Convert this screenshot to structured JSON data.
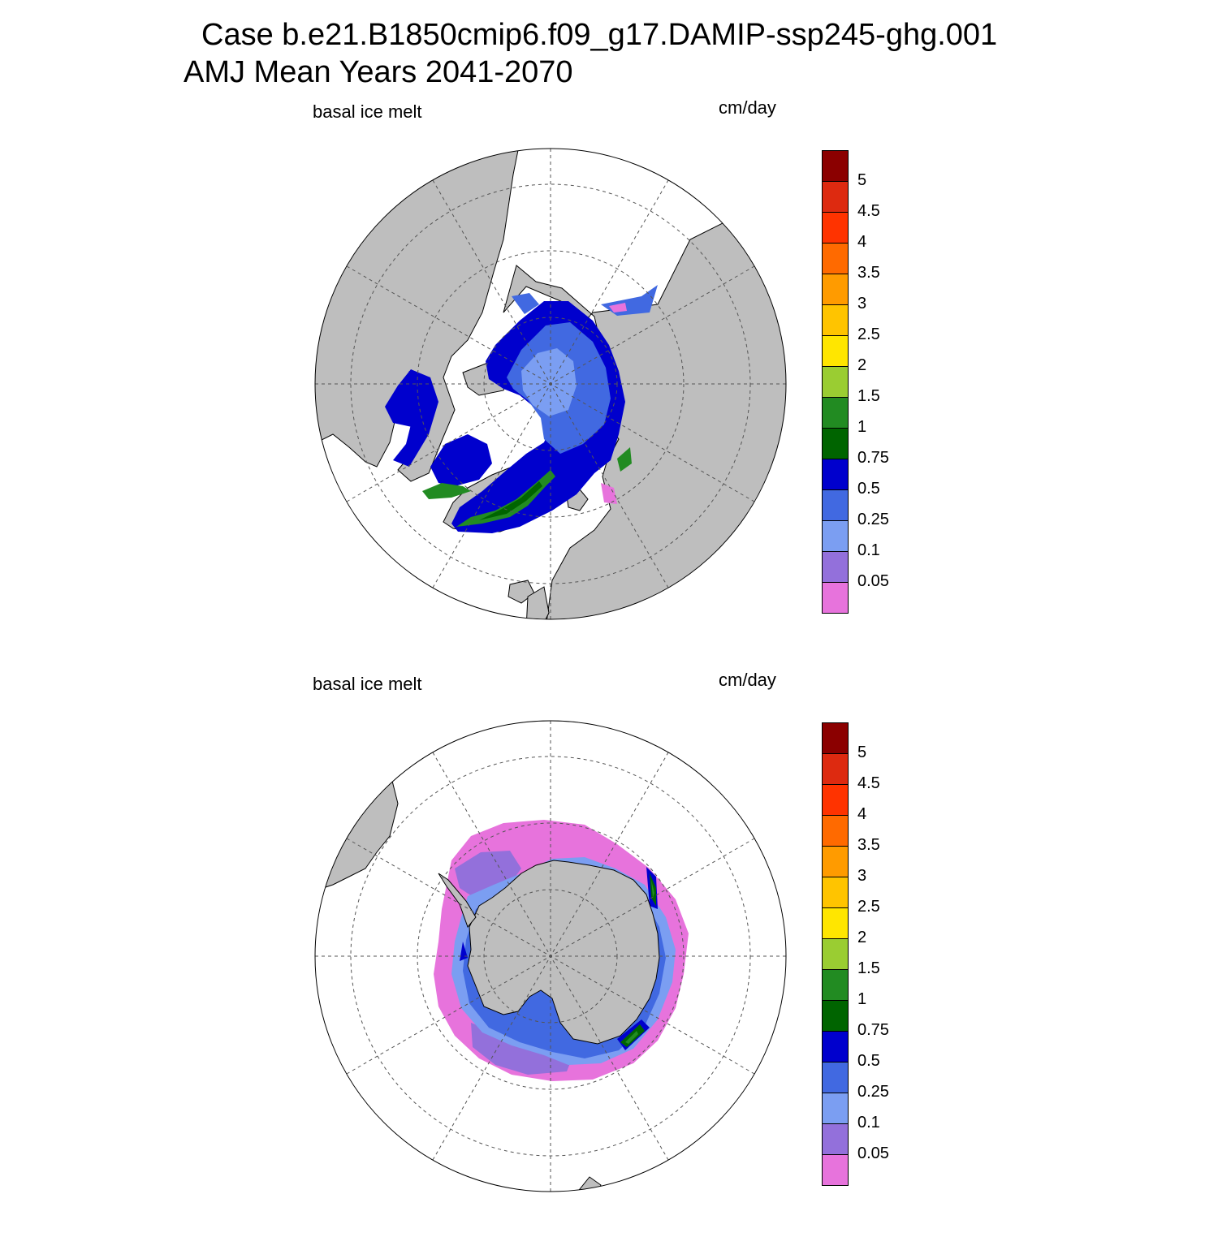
{
  "title": {
    "line1": "Case b.e21.B1850cmip6.f09_g17.DAMIP-ssp245-ghg.001",
    "line2": "AMJ Mean   Years 2041-2070"
  },
  "panels": [
    {
      "id": "north",
      "variable_label": "basal ice melt",
      "units_label": "cm/day",
      "hemisphere": "Northern"
    },
    {
      "id": "south",
      "variable_label": "basal ice melt",
      "units_label": "cm/day",
      "hemisphere": "Southern"
    }
  ],
  "colorbar": {
    "levels": [
      "0.05",
      "0.1",
      "0.25",
      "0.5",
      "0.75",
      "1",
      "1.5",
      "2",
      "2.5",
      "3",
      "3.5",
      "4",
      "4.5",
      "5"
    ],
    "colors": [
      "#e773dc",
      "#9370db",
      "#7b9ef2",
      "#4169e1",
      "#0000cd",
      "#006400",
      "#228b22",
      "#9acd32",
      "#ffe600",
      "#ffc400",
      "#ff9b00",
      "#ff6a00",
      "#ff3300",
      "#dd2a10",
      "#8b0000"
    ]
  },
  "colors": {
    "land": "#bebebe",
    "ocean": "#ffffff",
    "grid": "#555555"
  }
}
